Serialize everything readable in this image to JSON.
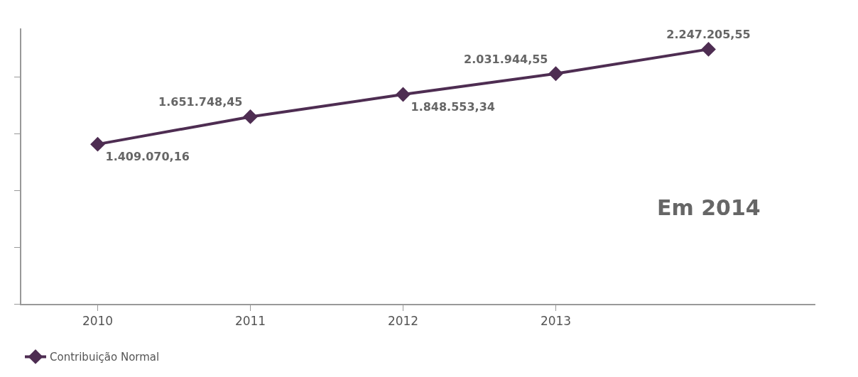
{
  "chart_data": {
    "type": "line",
    "categories": [
      "2010",
      "2011",
      "2012",
      "2013",
      null
    ],
    "series": [
      {
        "name": "Contribuição Normal",
        "color": "#4e2d52",
        "values": [
          1409070.16,
          1651748.45,
          1848553.34,
          2031944.55,
          2247205.55
        ],
        "value_labels": [
          "1.409.070,16",
          "1.651.748,45",
          "1.848.553,34",
          "2.031.944,55",
          "2.247.205,55"
        ]
      }
    ],
    "tick_labels": "x",
    "marker": "diamond",
    "line_style": "solid",
    "legend": "bottom left",
    "annotations": [
      "Em 2014"
    ]
  }
}
